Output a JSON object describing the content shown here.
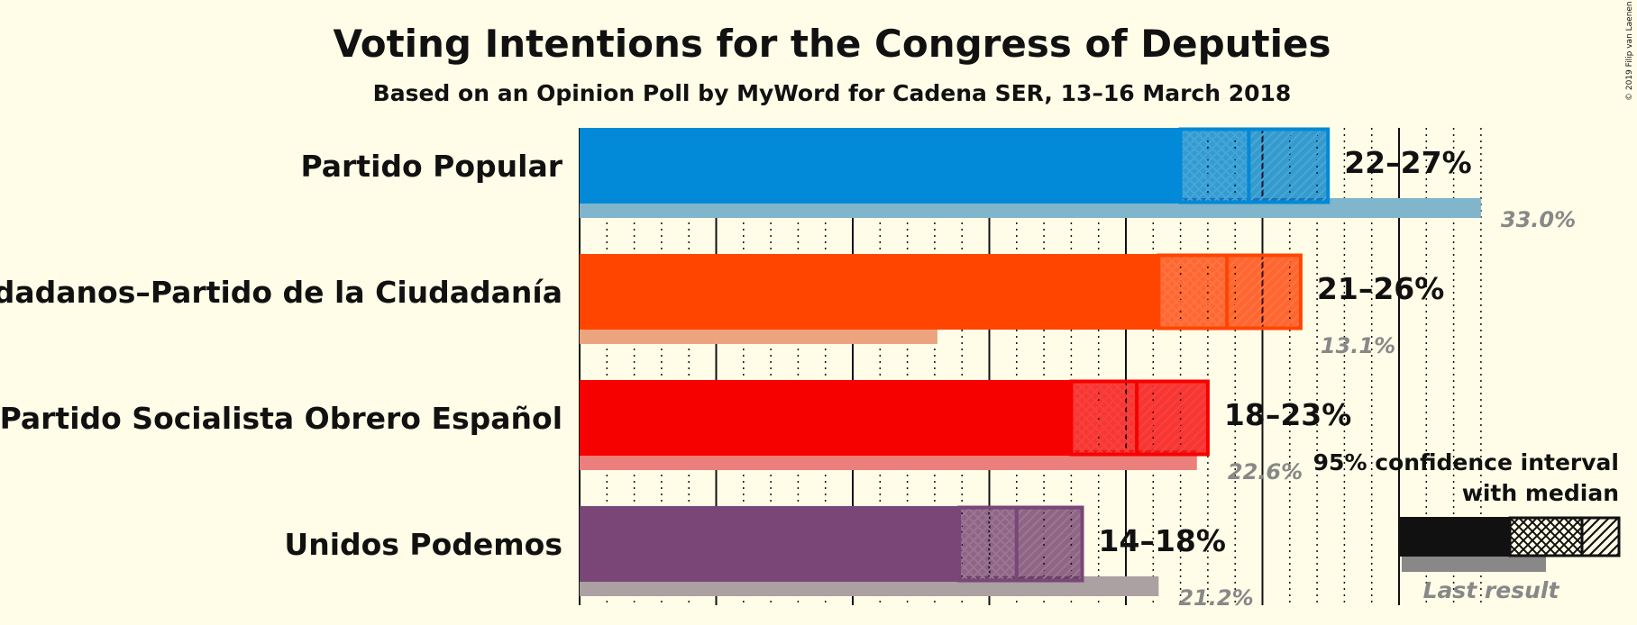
{
  "chart_data": {
    "type": "bar",
    "title": "Voting Intentions for the Congress of Deputies",
    "subtitle": "Based on an Opinion Poll by MyWord for Cadena SER, 13–16 March 2018",
    "copyright": "© 2019 Filip van Laenen",
    "xlim": [
      0,
      35
    ],
    "series": [
      {
        "name": "Partido Popular",
        "color": "#0289d7",
        "last_color": "#80b5cb",
        "ci_low": 22,
        "median": 24.5,
        "ci_high": 27.4,
        "range_label": "22–27%",
        "last_result": 33.0,
        "last_label": "33.0%"
      },
      {
        "name": "Ciudadanos–Partido de la Ciudadanía",
        "color": "#ff4500",
        "last_color": "#eca47e",
        "ci_low": 21.2,
        "median": 23.7,
        "ci_high": 26.4,
        "range_label": "21–26%",
        "last_result": 13.1,
        "last_label": "13.1%"
      },
      {
        "name": "Partido Socialista Obrero Español",
        "color": "#f70000",
        "last_color": "#eb7f7b",
        "ci_low": 18,
        "median": 20.4,
        "ci_high": 23,
        "range_label": "18–23%",
        "last_result": 22.6,
        "last_label": "22.6%"
      },
      {
        "name": "Unidos Podemos",
        "color": "#794677",
        "last_color": "#aba0a2",
        "ci_low": 13.9,
        "median": 16,
        "ci_high": 18.4,
        "range_label": "14–18%",
        "last_result": 21.2,
        "last_label": "21.2%"
      }
    ],
    "legend": {
      "line1": "95% confidence interval",
      "line2": "with median",
      "last_result": "Last result",
      "position": "bottom-right"
    }
  }
}
